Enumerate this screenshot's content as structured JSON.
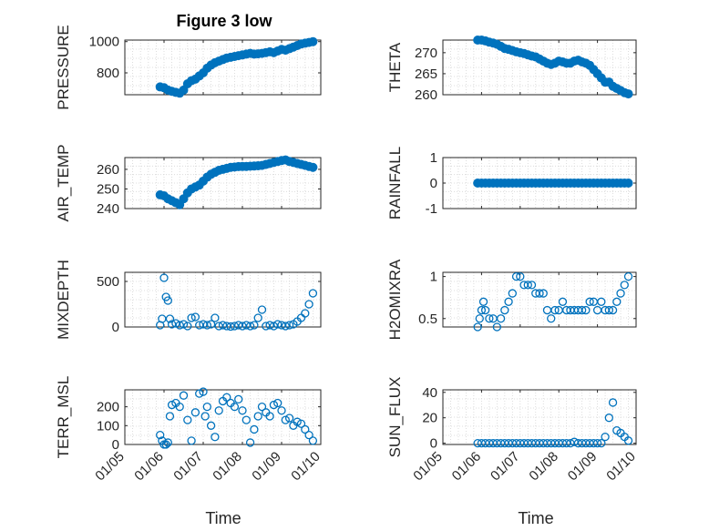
{
  "chart_data": {
    "type": "scatter",
    "title": "Figure 3 low",
    "x_ticks": [
      "01/05",
      "01/06",
      "01/07",
      "01/08",
      "01/09",
      "01/10"
    ],
    "xlabel": "Time",
    "marker_color": "#0072BD",
    "panels": [
      {
        "id": "pressure",
        "ylabel": "PRESSURE",
        "ylim": [
          660,
          1010
        ],
        "yticks": [
          800,
          1000
        ],
        "style": "filled",
        "x": [
          0.9,
          1.0,
          1.1,
          1.2,
          1.3,
          1.4,
          1.5,
          1.6,
          1.7,
          1.8,
          1.9,
          2.0,
          2.1,
          2.2,
          2.3,
          2.4,
          2.5,
          2.6,
          2.7,
          2.8,
          2.9,
          3.0,
          3.1,
          3.2,
          3.3,
          3.4,
          3.5,
          3.6,
          3.7,
          3.8,
          3.9,
          4.0,
          4.1,
          4.2,
          4.3,
          4.4,
          4.5,
          4.6,
          4.7,
          4.8
        ],
        "y": [
          710,
          705,
          690,
          682,
          675,
          670,
          690,
          730,
          750,
          760,
          780,
          800,
          830,
          850,
          865,
          875,
          885,
          895,
          900,
          905,
          910,
          915,
          920,
          925,
          920,
          922,
          925,
          930,
          935,
          930,
          940,
          950,
          945,
          955,
          965,
          975,
          985,
          990,
          995,
          1000
        ]
      },
      {
        "id": "theta",
        "ylabel": "THETA",
        "ylim": [
          260,
          273
        ],
        "yticks": [
          260,
          265,
          270
        ],
        "style": "filled",
        "x": [
          0.9,
          1.0,
          1.1,
          1.2,
          1.3,
          1.4,
          1.5,
          1.6,
          1.7,
          1.8,
          1.9,
          2.0,
          2.1,
          2.2,
          2.3,
          2.4,
          2.5,
          2.6,
          2.7,
          2.8,
          2.9,
          3.0,
          3.1,
          3.2,
          3.3,
          3.4,
          3.5,
          3.6,
          3.7,
          3.8,
          3.9,
          4.0,
          4.1,
          4.2,
          4.3,
          4.4,
          4.5,
          4.6,
          4.7,
          4.8
        ],
        "y": [
          273,
          273,
          272.8,
          272.5,
          272.3,
          272,
          271.5,
          271,
          270.8,
          270.5,
          270.2,
          270,
          269.8,
          269.5,
          269.2,
          269,
          268.5,
          268,
          267.5,
          267.2,
          267.5,
          268,
          267.8,
          267.5,
          267.5,
          268,
          268.2,
          267.8,
          267.5,
          267,
          266,
          265,
          264,
          263,
          263,
          262,
          261.5,
          261,
          260.5,
          260.2
        ]
      },
      {
        "id": "air_temp",
        "ylabel": "AIR_TEMP",
        "ylim": [
          240,
          266
        ],
        "yticks": [
          240,
          250,
          260
        ],
        "style": "filled",
        "x": [
          0.9,
          1.0,
          1.1,
          1.2,
          1.3,
          1.4,
          1.5,
          1.6,
          1.7,
          1.8,
          1.9,
          2.0,
          2.1,
          2.2,
          2.3,
          2.4,
          2.5,
          2.6,
          2.7,
          2.8,
          2.9,
          3.0,
          3.1,
          3.2,
          3.3,
          3.4,
          3.5,
          3.6,
          3.7,
          3.8,
          3.9,
          4.0,
          4.1,
          4.2,
          4.3,
          4.4,
          4.5,
          4.6,
          4.7,
          4.8
        ],
        "y": [
          247,
          246.5,
          245,
          244,
          243,
          242,
          245,
          248,
          250,
          251,
          252,
          254,
          256,
          257.5,
          258.5,
          259.5,
          260,
          260.5,
          261,
          261.2,
          261.4,
          261.5,
          261.5,
          261.6,
          261.7,
          261.8,
          262,
          262.5,
          263,
          263.5,
          264,
          264.5,
          264.8,
          264,
          263.5,
          263,
          262.5,
          262,
          261.5,
          261
        ]
      },
      {
        "id": "rainfall",
        "ylabel": "RAINFALL",
        "ylim": [
          -1,
          1
        ],
        "yticks": [
          -1,
          0,
          1
        ],
        "style": "filled",
        "x": [
          0.9,
          1.0,
          1.1,
          1.2,
          1.3,
          1.4,
          1.5,
          1.6,
          1.7,
          1.8,
          1.9,
          2.0,
          2.1,
          2.2,
          2.3,
          2.4,
          2.5,
          2.6,
          2.7,
          2.8,
          2.9,
          3.0,
          3.1,
          3.2,
          3.3,
          3.4,
          3.5,
          3.6,
          3.7,
          3.8,
          3.9,
          4.0,
          4.1,
          4.2,
          4.3,
          4.4,
          4.5,
          4.6,
          4.7,
          4.8
        ],
        "y": [
          0,
          0,
          0,
          0,
          0,
          0,
          0,
          0,
          0,
          0,
          0,
          0,
          0,
          0,
          0,
          0,
          0,
          0,
          0,
          0,
          0,
          0,
          0,
          0,
          0,
          0,
          0,
          0,
          0,
          0,
          0,
          0,
          0,
          0,
          0,
          0,
          0,
          0,
          0,
          0
        ]
      },
      {
        "id": "mixdepth",
        "ylabel": "MIXDEPTH",
        "ylim": [
          0,
          600
        ],
        "yticks": [
          0,
          500
        ],
        "style": "open",
        "x": [
          0.9,
          0.95,
          1.0,
          1.05,
          1.1,
          1.15,
          1.2,
          1.3,
          1.4,
          1.5,
          1.6,
          1.7,
          1.8,
          1.9,
          2.0,
          2.1,
          2.2,
          2.3,
          2.4,
          2.5,
          2.6,
          2.7,
          2.8,
          2.9,
          3.0,
          3.1,
          3.2,
          3.3,
          3.4,
          3.5,
          3.6,
          3.7,
          3.8,
          3.9,
          4.0,
          4.1,
          4.2,
          4.3,
          4.4,
          4.5,
          4.6,
          4.7,
          4.8
        ],
        "y": [
          20,
          90,
          540,
          330,
          290,
          90,
          30,
          40,
          20,
          30,
          10,
          100,
          110,
          20,
          30,
          20,
          30,
          100,
          10,
          20,
          10,
          5,
          10,
          20,
          10,
          20,
          10,
          20,
          100,
          190,
          10,
          20,
          10,
          30,
          20,
          10,
          20,
          30,
          60,
          100,
          150,
          250,
          370
        ]
      },
      {
        "id": "h2omixra",
        "ylabel": "H2OMIXRA",
        "ylim": [
          0.4,
          1.05
        ],
        "yticks": [
          0.5,
          1
        ],
        "style": "open",
        "x": [
          0.9,
          0.95,
          1.0,
          1.05,
          1.1,
          1.2,
          1.3,
          1.4,
          1.5,
          1.6,
          1.7,
          1.8,
          1.9,
          2.0,
          2.1,
          2.2,
          2.3,
          2.4,
          2.5,
          2.6,
          2.7,
          2.8,
          2.9,
          3.0,
          3.1,
          3.2,
          3.3,
          3.4,
          3.5,
          3.6,
          3.7,
          3.8,
          3.9,
          4.0,
          4.1,
          4.2,
          4.3,
          4.4,
          4.5,
          4.6,
          4.7,
          4.8
        ],
        "y": [
          0.4,
          0.5,
          0.6,
          0.7,
          0.6,
          0.5,
          0.5,
          0.4,
          0.5,
          0.6,
          0.7,
          0.8,
          1.0,
          1.0,
          0.9,
          0.9,
          0.9,
          0.8,
          0.8,
          0.8,
          0.6,
          0.5,
          0.6,
          0.6,
          0.7,
          0.6,
          0.6,
          0.6,
          0.6,
          0.6,
          0.6,
          0.7,
          0.7,
          0.6,
          0.7,
          0.6,
          0.6,
          0.6,
          0.7,
          0.8,
          0.9,
          1.0
        ]
      },
      {
        "id": "terr_msl",
        "ylabel": "TERR_MSL",
        "ylim": [
          0,
          290
        ],
        "yticks": [
          0,
          100,
          200
        ],
        "style": "open",
        "x": [
          0.9,
          0.95,
          1.0,
          1.05,
          1.1,
          1.15,
          1.2,
          1.3,
          1.4,
          1.5,
          1.6,
          1.7,
          1.8,
          1.9,
          2.0,
          2.05,
          2.1,
          2.2,
          2.3,
          2.4,
          2.5,
          2.6,
          2.7,
          2.8,
          2.9,
          3.0,
          3.1,
          3.2,
          3.3,
          3.4,
          3.5,
          3.6,
          3.7,
          3.8,
          3.9,
          4.0,
          4.1,
          4.2,
          4.3,
          4.4,
          4.5,
          4.6,
          4.7,
          4.8
        ],
        "y": [
          50,
          20,
          0,
          0,
          10,
          150,
          210,
          220,
          200,
          260,
          130,
          20,
          170,
          270,
          280,
          150,
          200,
          100,
          40,
          180,
          230,
          250,
          220,
          200,
          240,
          180,
          130,
          10,
          80,
          150,
          200,
          170,
          150,
          210,
          220,
          180,
          130,
          140,
          100,
          120,
          110,
          80,
          50,
          20
        ]
      },
      {
        "id": "sun_flux",
        "ylabel": "SUN_FLUX",
        "ylim": [
          -1,
          42
        ],
        "yticks": [
          0,
          20,
          40
        ],
        "style": "open",
        "x": [
          0.9,
          1.0,
          1.1,
          1.2,
          1.3,
          1.4,
          1.5,
          1.6,
          1.7,
          1.8,
          1.9,
          2.0,
          2.1,
          2.2,
          2.3,
          2.4,
          2.5,
          2.6,
          2.7,
          2.8,
          2.9,
          3.0,
          3.1,
          3.2,
          3.3,
          3.4,
          3.5,
          3.6,
          3.7,
          3.8,
          3.9,
          4.0,
          4.1,
          4.2,
          4.3,
          4.4,
          4.5,
          4.6,
          4.7,
          4.8
        ],
        "y": [
          0,
          0,
          0,
          0,
          0,
          0,
          0,
          0,
          0,
          0,
          0,
          0,
          0,
          0,
          0,
          0,
          0,
          0,
          0,
          0,
          0,
          0,
          0,
          0,
          0,
          1,
          0,
          0,
          0,
          0,
          0,
          0,
          0,
          5,
          20,
          32,
          10,
          8,
          5,
          2
        ]
      }
    ]
  }
}
